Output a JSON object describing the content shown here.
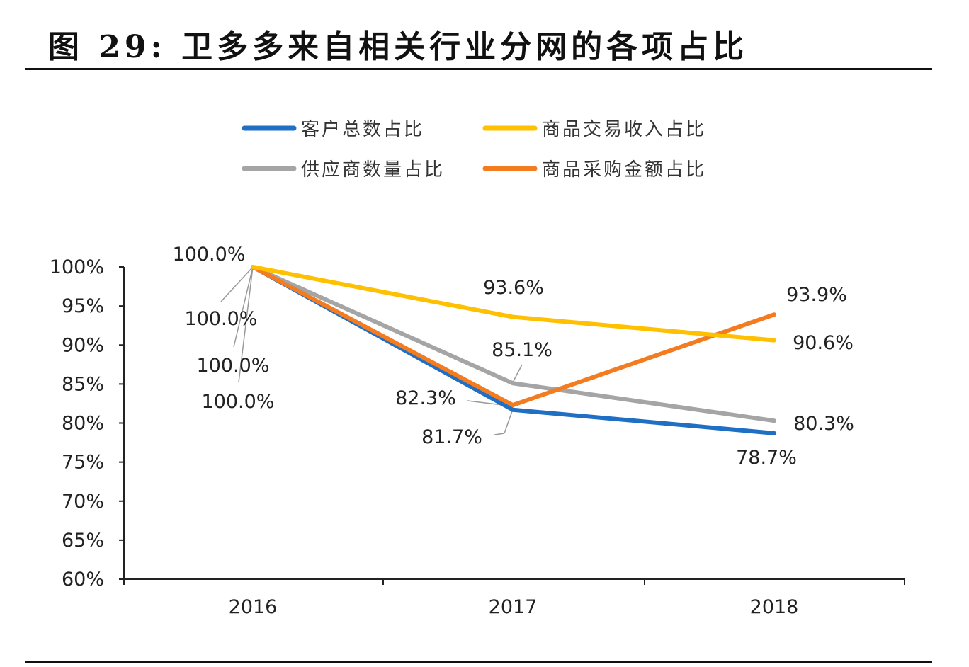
{
  "title": "图  29:  卫多多来自相关行业分网的各项占比",
  "chart_data": {
    "type": "line",
    "title": "",
    "xlabel": "",
    "ylabel": "",
    "categories": [
      "2016",
      "2017",
      "2018"
    ],
    "ylim": [
      60,
      100
    ],
    "yticks": [
      "60%",
      "65%",
      "70%",
      "75%",
      "80%",
      "85%",
      "90%",
      "95%",
      "100%"
    ],
    "ytick_values": [
      60,
      65,
      70,
      75,
      80,
      85,
      90,
      95,
      100
    ],
    "grid": false,
    "legend_position": "top",
    "series": [
      {
        "name": "客户总数占比",
        "color": "#1f6fc5",
        "values": [
          100.0,
          81.7,
          78.7
        ],
        "labels": [
          "100.0%",
          "81.7%",
          "78.7%"
        ]
      },
      {
        "name": "商品交易收入占比",
        "color": "#ffc000",
        "values": [
          100.0,
          93.6,
          90.6
        ],
        "labels": [
          "100.0%",
          "93.6%",
          "90.6%"
        ]
      },
      {
        "name": "供应商数量占比",
        "color": "#a5a5a5",
        "values": [
          100.0,
          85.1,
          80.3
        ],
        "labels": [
          "100.0%",
          "85.1%",
          "80.3%"
        ]
      },
      {
        "name": "商品采购金额占比",
        "color": "#f47c20",
        "values": [
          100.0,
          82.3,
          93.9
        ],
        "labels": [
          "100.0%",
          "82.3%",
          "93.9%"
        ]
      }
    ]
  }
}
